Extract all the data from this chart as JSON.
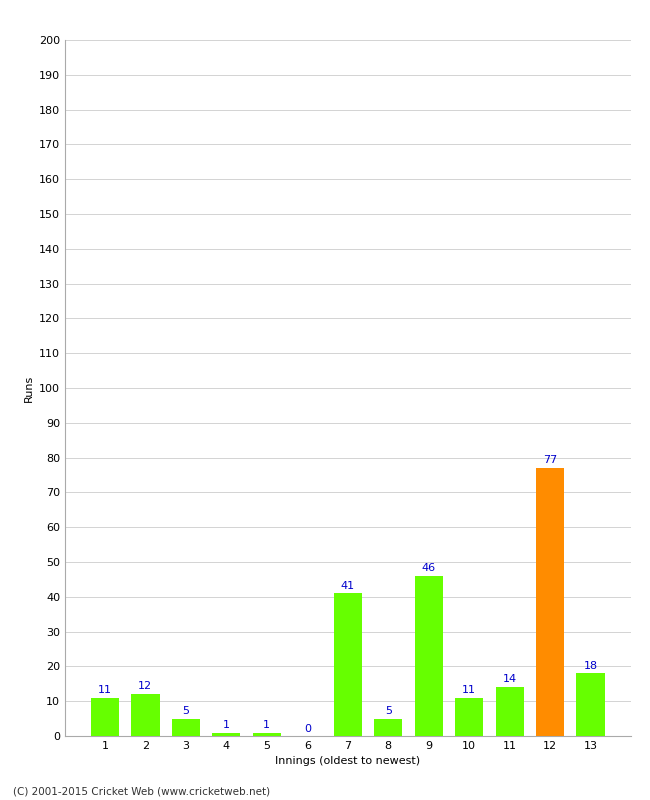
{
  "innings": [
    1,
    2,
    3,
    4,
    5,
    6,
    7,
    8,
    9,
    10,
    11,
    12,
    13
  ],
  "runs": [
    11,
    12,
    5,
    1,
    1,
    0,
    41,
    5,
    46,
    11,
    14,
    77,
    18
  ],
  "colors": [
    "#66ff00",
    "#66ff00",
    "#66ff00",
    "#66ff00",
    "#66ff00",
    "#66ff00",
    "#66ff00",
    "#66ff00",
    "#66ff00",
    "#66ff00",
    "#66ff00",
    "#ff8c00",
    "#66ff00"
  ],
  "ylabel": "Runs",
  "xlabel": "Innings (oldest to newest)",
  "ylim": [
    0,
    200
  ],
  "yticks": [
    0,
    10,
    20,
    30,
    40,
    50,
    60,
    70,
    80,
    90,
    100,
    110,
    120,
    130,
    140,
    150,
    160,
    170,
    180,
    190,
    200
  ],
  "footer": "(C) 2001-2015 Cricket Web (www.cricketweb.net)",
  "label_color": "#0000cc",
  "bar_color_green": "#66ff00",
  "bar_color_orange": "#ff8800",
  "background_color": "#ffffff",
  "grid_color": "#cccccc",
  "spine_color": "#aaaaaa",
  "tick_label_fontsize": 8,
  "axis_label_fontsize": 8,
  "bar_label_fontsize": 8
}
